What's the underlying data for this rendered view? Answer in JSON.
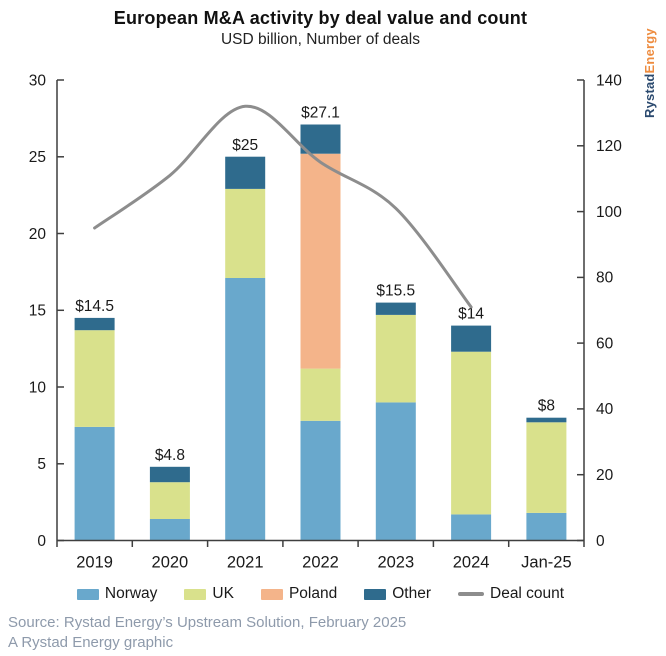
{
  "title": "European M&A activity by deal value and count",
  "subtitle": "USD billion, Number of deals",
  "logo": {
    "part1": "Rystad",
    "part2": "Energy"
  },
  "footer": {
    "source": "Source: Rystad Energy’s Upstream Solution, February 2025",
    "credit": "A Rystad Energy graphic"
  },
  "colors": {
    "norway": "#69A8CC",
    "uk": "#D9E18C",
    "poland": "#F4B48A",
    "other": "#2F6B8D",
    "deal_count_line": "#8D8D8D",
    "axis": "#3F3F3F",
    "text": "#1A1A1A",
    "source_text": "#8E9AAB",
    "logo_blue": "#2B4A6F",
    "logo_orange": "#EE8C3F"
  },
  "chart_data": {
    "type": "bar",
    "subtype": "stacked-bars-with-line-overlay",
    "title": "European M&A activity by deal value and count",
    "subtitle": "USD billion, Number of deals",
    "grid": false,
    "legend_position": "bottom",
    "categories": [
      "2019",
      "2020",
      "2021",
      "2022",
      "2023",
      "2024",
      "Jan-25"
    ],
    "series": [
      {
        "name": "Norway",
        "color": "#69A8CC",
        "values": [
          7.4,
          1.4,
          17.1,
          7.8,
          9.0,
          1.7,
          1.8
        ]
      },
      {
        "name": "UK",
        "color": "#D9E18C",
        "values": [
          6.3,
          2.4,
          5.8,
          3.4,
          5.7,
          10.6,
          5.9
        ]
      },
      {
        "name": "Poland",
        "color": "#F4B48A",
        "values": [
          0,
          0,
          0,
          14.0,
          0,
          0,
          0
        ]
      },
      {
        "name": "Other",
        "color": "#2F6B8D",
        "values": [
          0.8,
          1.0,
          2.1,
          1.9,
          0.8,
          1.7,
          0.3
        ]
      }
    ],
    "bar_totals": [
      14.5,
      4.8,
      25,
      27.1,
      15.5,
      14,
      8
    ],
    "bar_total_labels": [
      "$14.5",
      "$4.8",
      "$25",
      "$27.1",
      "$15.5",
      "$14",
      "$8"
    ],
    "line_series": {
      "name": "Deal count",
      "color": "#8D8D8D",
      "categories_covered": [
        "2019",
        "2020",
        "2021",
        "2022",
        "2023",
        "2024"
      ],
      "values": [
        95,
        111,
        132,
        115,
        101,
        71
      ]
    },
    "left_axis": {
      "label": "USD billion",
      "min": 0,
      "max": 30,
      "ticks": [
        0,
        5,
        10,
        15,
        20,
        25,
        30
      ]
    },
    "right_axis": {
      "label": "Number of deals",
      "min": 0,
      "max": 140,
      "ticks": [
        0,
        20,
        40,
        60,
        80,
        100,
        120,
        140
      ]
    },
    "legend": [
      {
        "label": "Norway",
        "color": "#69A8CC",
        "type": "box"
      },
      {
        "label": "UK",
        "color": "#D9E18C",
        "type": "box"
      },
      {
        "label": "Poland",
        "color": "#F4B48A",
        "type": "box"
      },
      {
        "label": "Other",
        "color": "#2F6B8D",
        "type": "box"
      },
      {
        "label": "Deal count",
        "color": "#8D8D8D",
        "type": "line"
      }
    ]
  }
}
